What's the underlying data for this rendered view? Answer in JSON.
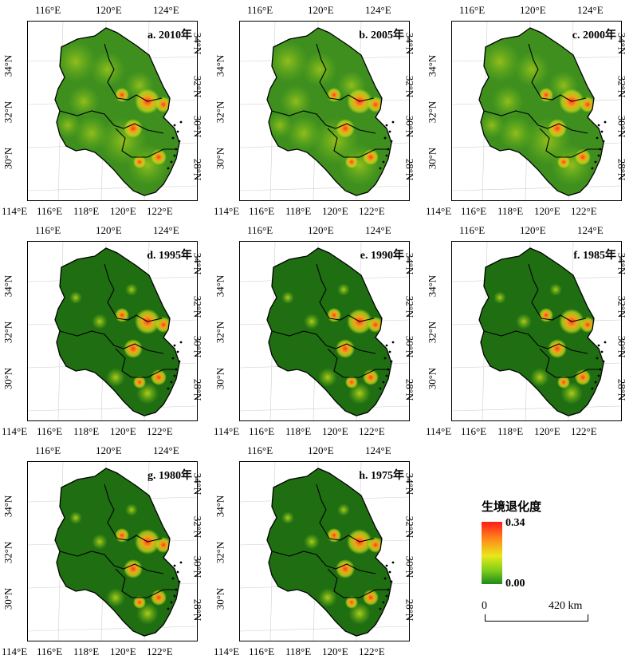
{
  "panels": [
    {
      "label": "a. 2010年",
      "style": "mixed"
    },
    {
      "label": "b. 2005年",
      "style": "mixed"
    },
    {
      "label": "c. 2000年",
      "style": "mixed"
    },
    {
      "label": "d. 1995年",
      "style": "dark"
    },
    {
      "label": "e. 1990年",
      "style": "dark"
    },
    {
      "label": "f. 1985年",
      "style": "dark"
    },
    {
      "label": "g. 1980年",
      "style": "dark"
    },
    {
      "label": "h. 1975年",
      "style": "dark"
    }
  ],
  "axes": {
    "top_ticks": [
      "116°E",
      "120°E",
      "124°E"
    ],
    "bottom_ticks": [
      "114°E",
      "116°E",
      "118°E",
      "120°E",
      "122°E"
    ],
    "left_ticks": [
      "34°N",
      "32°N",
      "30°N"
    ],
    "right_ticks": [
      "34°N",
      "32°N",
      "30°N",
      "28°N"
    ]
  },
  "legend": {
    "title": "生境退化度",
    "max": "0.34",
    "min": "0.00",
    "colors": [
      "#ff1a1a",
      "#ff8a1a",
      "#e8e81a",
      "#7fcf1a",
      "#1f8a1a"
    ]
  },
  "scale": {
    "left": "0",
    "right": "420 km"
  }
}
